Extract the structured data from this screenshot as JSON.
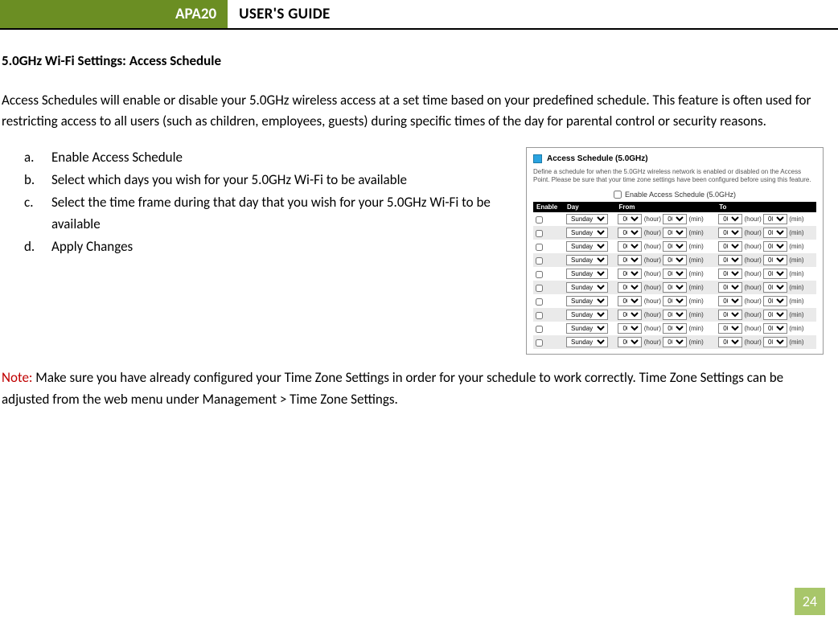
{
  "header": {
    "badge": "APA20",
    "title": "USER'S GUIDE"
  },
  "section_heading": "5.0GHz Wi-Fi Settings: Access Schedule",
  "intro": "Access Schedules will enable or disable your 5.0GHz wireless access at a set time based on your predefined schedule. This feature is often used for restricting access to all users (such as children, employees, guests) during specific times of the day for parental control or security reasons.",
  "steps": {
    "a": "Enable Access Schedule",
    "b": "Select which days you wish for your 5.0GHz Wi-Fi to be available",
    "c": "Select the time frame during that day that you wish for your 5.0GHz Wi-Fi to be available",
    "d": "Apply Changes"
  },
  "note": {
    "label": "Note:",
    "text": " Make sure you have already configured your Time Zone Settings in order for your schedule to work correctly. Time Zone Settings can be adjusted from the web menu under Management > Time Zone Settings."
  },
  "panel": {
    "title": "Access Schedule (5.0GHz)",
    "desc": "Define a schedule for when the 5.0GHz wireless network is enabled or disabled on the Access Point. Please be sure that your time zone settings have been configured before using this feature.",
    "enable_label": "Enable Access Schedule (5.0GHz)",
    "columns": {
      "enable": "Enable",
      "day": "Day",
      "from": "From",
      "to": "To"
    },
    "row_default": {
      "day": "Sunday",
      "hour": "00",
      "min": "00",
      "hour_unit": "(hour)",
      "min_unit": "(min)"
    },
    "row_count": 10
  },
  "page_number": "24",
  "colors": {
    "header_green": "#6b8e23",
    "page_badge": "#a8c66a",
    "panel_blue": "#2aa3e0",
    "note_red": "#c00000"
  }
}
